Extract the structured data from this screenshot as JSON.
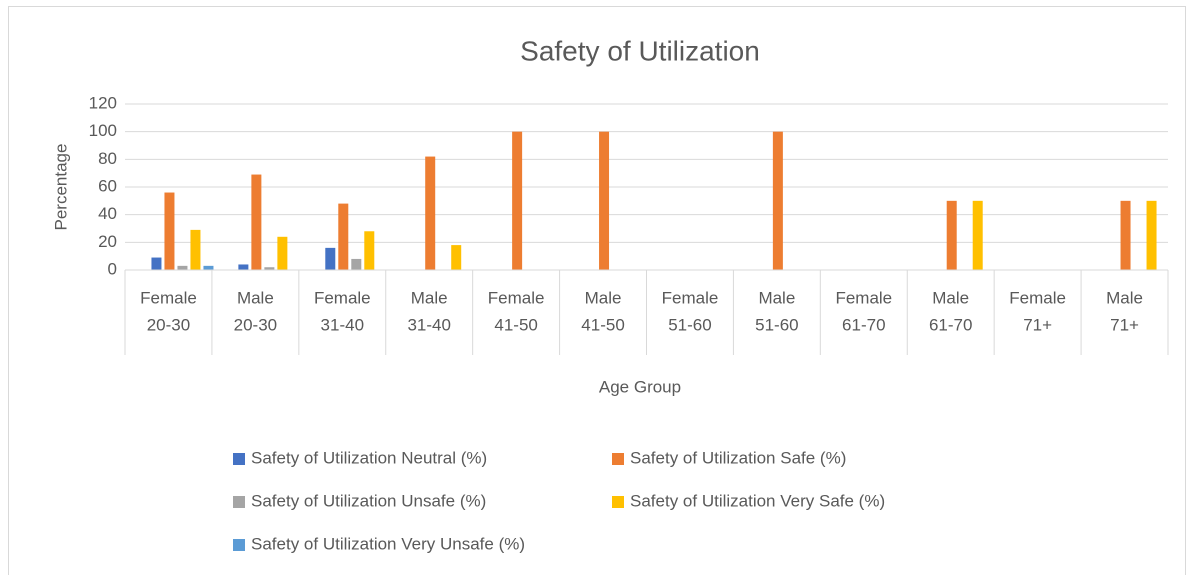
{
  "chart_data": {
    "type": "bar",
    "title": "Safety of Utilization",
    "x_label": "Age Group",
    "y_label": "Percentage",
    "categories": [
      "Female",
      "Male",
      "Female",
      "Male",
      "Female",
      "Male",
      "Female",
      "Male",
      "Female",
      "Male",
      "Female",
      "Male"
    ],
    "category_groups": [
      "20-30",
      "20-30",
      "31-40",
      "31-40",
      "41-50",
      "41-50",
      "51-60",
      "51-60",
      "61-70",
      "61-70",
      "71+",
      "71+"
    ],
    "series": [
      {
        "name": "Safety of Utilization Neutral (%)",
        "color": "#4472c4",
        "values": [
          9,
          4,
          16,
          0,
          0,
          0,
          0,
          0,
          0,
          0,
          0,
          0
        ]
      },
      {
        "name": "Safety of Utilization Safe (%)",
        "color": "#ed7d31",
        "values": [
          56,
          69,
          48,
          82,
          100,
          100,
          0,
          100,
          0,
          50,
          0,
          50
        ]
      },
      {
        "name": "Safety of Utilization Unsafe (%)",
        "color": "#a5a5a5",
        "values": [
          3,
          2,
          8,
          0,
          0,
          0,
          0,
          0,
          0,
          0,
          0,
          0
        ]
      },
      {
        "name": "Safety of Utilization Very Safe (%)",
        "color": "#ffc000",
        "values": [
          29,
          24,
          28,
          18,
          0,
          0,
          0,
          0,
          0,
          50,
          0,
          50
        ]
      },
      {
        "name": "Safety of Utilization Very Unsafe (%)",
        "color": "#5b9bd5",
        "values": [
          3,
          0,
          0,
          0,
          0,
          0,
          0,
          0,
          0,
          0,
          0,
          0
        ]
      }
    ],
    "ylim": [
      0,
      120
    ],
    "yticks": [
      0,
      20,
      40,
      60,
      80,
      100,
      120
    ],
    "grid": true,
    "legend": "bottom"
  }
}
